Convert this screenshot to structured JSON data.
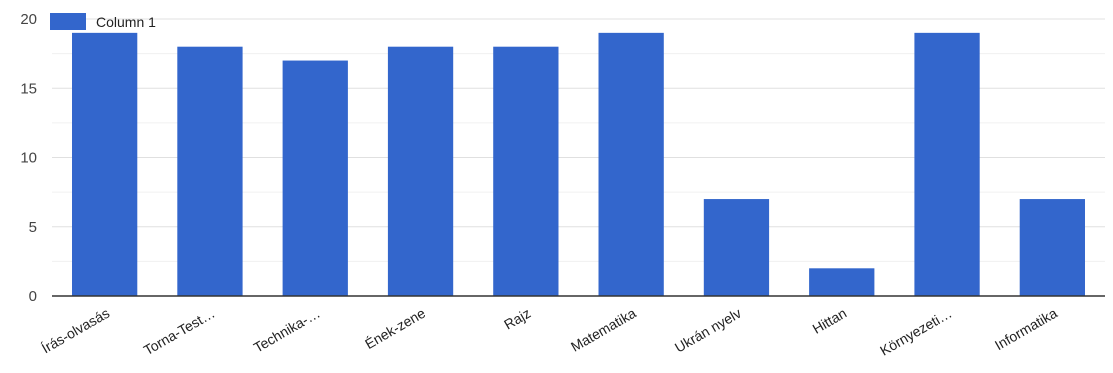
{
  "chart_data": {
    "type": "bar",
    "categories": [
      "Írás-olvasás",
      "Torna-Test…",
      "Technika-…",
      "Ének-zene",
      "Rajz",
      "Matematika",
      "Ukrán nyelv",
      "Hittan",
      "Környezeti…",
      "Informatika"
    ],
    "series": [
      {
        "name": "Column 1",
        "values": [
          19,
          18,
          17,
          18,
          18,
          19,
          7,
          2,
          19,
          7
        ]
      }
    ],
    "ylim": [
      0,
      20
    ],
    "yticks": [
      0,
      5,
      10,
      15,
      20
    ],
    "grid": true,
    "legend_position": "top-left",
    "colors": {
      "bar": "#3366cc",
      "grid": "#e6e6e6",
      "axis": "#333333"
    }
  }
}
